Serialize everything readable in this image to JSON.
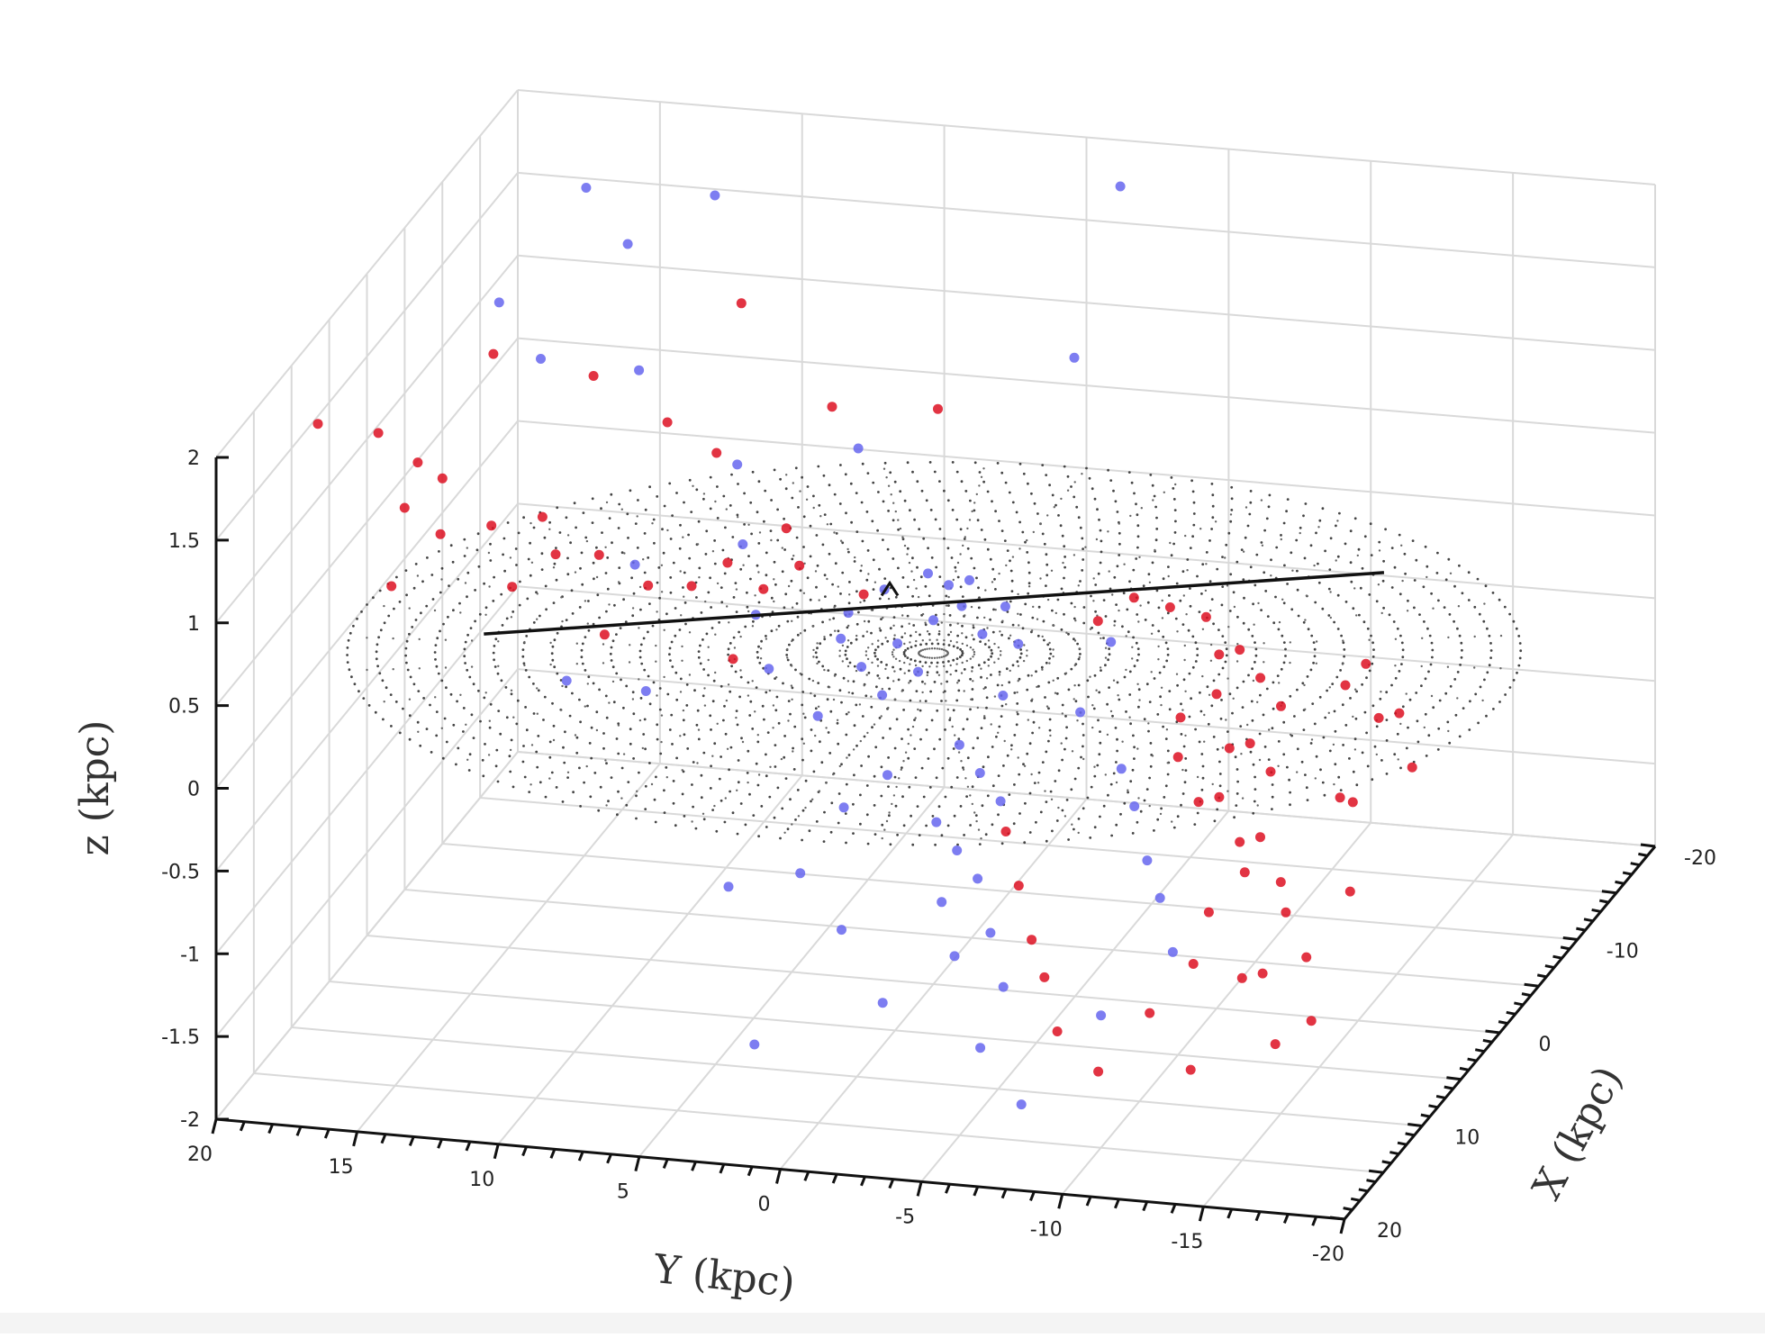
{
  "chart_data": {
    "type": "scatter",
    "projection": "3d",
    "title": "",
    "xlabel": "X (kpc)",
    "ylabel": "Y (kpc)",
    "zlabel": "z (kpc)",
    "xlim": [
      -20,
      20
    ],
    "ylim": [
      -20,
      20
    ],
    "zlim": [
      -2,
      2
    ],
    "x_ticks": [
      "-20",
      "-10",
      "0",
      "10",
      "20"
    ],
    "y_ticks": [
      "20",
      "15",
      "10",
      "5",
      "0",
      "-5",
      "-10",
      "-15",
      "-20"
    ],
    "z_ticks": [
      "2",
      "1.5",
      "1",
      "0.5",
      "0",
      "-0.5",
      "-1",
      "-1.5",
      "-2"
    ],
    "grid": true,
    "legend": "none",
    "series": [
      {
        "color": "#dd1122",
        "points": [
          [
            12.0,
            15.0,
            1.6
          ],
          [
            10.0,
            16.0,
            1.2
          ],
          [
            8.0,
            17.0,
            0.6
          ],
          [
            9.0,
            15.0,
            1.0
          ],
          [
            6.0,
            14.0,
            0.9
          ],
          [
            5.0,
            12.0,
            0.7
          ],
          [
            3.0,
            11.0,
            0.6
          ],
          [
            4.0,
            9.0,
            0.5
          ],
          [
            2.0,
            8.0,
            0.4
          ],
          [
            1.0,
            7.0,
            0.5
          ],
          [
            0.0,
            6.0,
            0.3
          ],
          [
            -1.0,
            5.0,
            0.4
          ],
          [
            3.0,
            13.0,
            0.8
          ],
          [
            7.0,
            13.0,
            0.6
          ],
          [
            6.0,
            10.0,
            0.3
          ],
          [
            4.0,
            6.0,
            0.1
          ],
          [
            -2.0,
            3.0,
            0.2
          ],
          [
            -3.0,
            6.0,
            0.5
          ],
          [
            -5.0,
            9.0,
            0.8
          ],
          [
            -6.0,
            11.0,
            0.9
          ],
          [
            -3.0,
            -5.0,
            0.1
          ],
          [
            -4.0,
            -6.0,
            0.2
          ],
          [
            -5.0,
            -7.0,
            0.1
          ],
          [
            -6.0,
            -8.0,
            0.0
          ],
          [
            -4.0,
            -9.0,
            -0.1
          ],
          [
            -3.0,
            -10.0,
            0.0
          ],
          [
            -2.0,
            -11.0,
            -0.1
          ],
          [
            -1.0,
            -12.0,
            -0.2
          ],
          [
            0.0,
            -10.0,
            -0.1
          ],
          [
            1.0,
            -9.0,
            -0.2
          ],
          [
            2.0,
            -11.0,
            -0.3
          ],
          [
            3.0,
            -12.0,
            -0.2
          ],
          [
            4.0,
            -13.0,
            -0.3
          ],
          [
            5.0,
            -10.0,
            -0.2
          ],
          [
            6.0,
            -11.0,
            -0.4
          ],
          [
            7.0,
            -12.0,
            -0.3
          ],
          [
            8.0,
            -13.0,
            -0.5
          ],
          [
            9.0,
            -14.0,
            -0.4
          ],
          [
            10.0,
            -15.0,
            -0.6
          ],
          [
            11.0,
            -14.0,
            -0.5
          ],
          [
            12.0,
            -13.0,
            -0.7
          ],
          [
            13.0,
            -16.0,
            -0.6
          ],
          [
            14.0,
            -17.0,
            -0.8
          ],
          [
            15.0,
            -15.0,
            -0.9
          ],
          [
            16.0,
            -16.0,
            -0.8
          ],
          [
            17.0,
            -18.0,
            -1.0
          ],
          [
            18.0,
            -17.0,
            -1.1
          ],
          [
            -2.0,
            -14.0,
            -0.1
          ],
          [
            -1.0,
            -15.0,
            0.1
          ],
          [
            1.0,
            -16.0,
            -0.1
          ],
          [
            2.0,
            -17.0,
            0.0
          ],
          [
            4.0,
            -18.0,
            -0.2
          ],
          [
            6.0,
            -16.0,
            -0.3
          ],
          [
            8.0,
            -17.0,
            -0.2
          ],
          [
            12.0,
            -18.0,
            -0.5
          ],
          [
            14.0,
            -13.0,
            -0.9
          ],
          [
            16.0,
            -12.0,
            -1.1
          ],
          [
            18.0,
            -14.0,
            -1.3
          ],
          [
            17.0,
            -9.0,
            -1.2
          ],
          [
            15.0,
            -8.0,
            -1.0
          ],
          [
            13.0,
            -7.0,
            -0.9
          ],
          [
            11.0,
            -6.0,
            -0.7
          ],
          [
            9.0,
            -5.0,
            -0.5
          ],
          [
            19.0,
            -11.0,
            -1.3
          ],
          [
            -8.0,
            2.0,
            1.0
          ],
          [
            -12.0,
            10.0,
            1.3
          ],
          [
            -9.0,
            6.0,
            0.9
          ],
          [
            0.0,
            12.0,
            1.5
          ],
          [
            2.0,
            15.0,
            1.7
          ],
          [
            14.0,
            18.0,
            1.9
          ],
          [
            5.0,
            16.0,
            1.1
          ],
          [
            6.0,
            18.0,
            1.4
          ]
        ]
      },
      {
        "color": "#6666ee",
        "points": [
          [
            0.0,
            -1.0,
            0.3
          ],
          [
            1.0,
            -2.0,
            0.2
          ],
          [
            -1.0,
            -1.0,
            0.4
          ],
          [
            0.0,
            0.0,
            0.2
          ],
          [
            1.0,
            1.0,
            0.1
          ],
          [
            2.0,
            0.0,
            0.0
          ],
          [
            -1.0,
            2.0,
            0.3
          ],
          [
            0.0,
            3.0,
            0.2
          ],
          [
            1.0,
            3.0,
            0.1
          ],
          [
            2.0,
            2.0,
            0.0
          ],
          [
            3.0,
            1.0,
            -0.1
          ],
          [
            -2.0,
            0.0,
            0.3
          ],
          [
            -3.0,
            1.0,
            0.3
          ],
          [
            -2.0,
            -2.0,
            0.2
          ],
          [
            0.0,
            -3.0,
            0.1
          ],
          [
            2.0,
            -3.0,
            -0.1
          ],
          [
            4.0,
            -2.0,
            -0.3
          ],
          [
            5.0,
            -3.0,
            -0.4
          ],
          [
            6.0,
            -4.0,
            -0.5
          ],
          [
            7.0,
            -2.0,
            -0.6
          ],
          [
            8.0,
            -3.0,
            -0.7
          ],
          [
            9.0,
            -4.0,
            -0.8
          ],
          [
            10.0,
            -3.0,
            -0.9
          ],
          [
            11.0,
            -5.0,
            -1.0
          ],
          [
            12.0,
            -4.0,
            -1.1
          ],
          [
            13.0,
            -6.0,
            -1.2
          ],
          [
            6.0,
            0.0,
            -0.4
          ],
          [
            8.0,
            1.0,
            -0.5
          ],
          [
            10.0,
            2.0,
            -0.8
          ],
          [
            12.0,
            0.0,
            -1.0
          ],
          [
            14.0,
            -2.0,
            -1.3
          ],
          [
            4.0,
            3.0,
            -0.2
          ],
          [
            3.0,
            5.0,
            0.0
          ],
          [
            1.0,
            6.0,
            0.2
          ],
          [
            -1.0,
            7.0,
            0.5
          ],
          [
            -4.0,
            8.0,
            0.8
          ],
          [
            -6.0,
            12.0,
            1.2
          ],
          [
            -12.0,
            14.0,
            1.6
          ],
          [
            -14.0,
            16.0,
            1.8
          ],
          [
            -16.0,
            12.0,
            1.7
          ],
          [
            -10.0,
            18.0,
            1.3
          ],
          [
            -8.0,
            16.0,
            1.1
          ],
          [
            5.0,
            -8.0,
            -0.3
          ],
          [
            7.0,
            -9.0,
            -0.4
          ],
          [
            9.0,
            -10.0,
            -0.6
          ],
          [
            11.0,
            -11.0,
            -0.7
          ],
          [
            13.0,
            -12.0,
            -0.9
          ],
          [
            15.0,
            -10.0,
            -1.2
          ],
          [
            3.0,
            -6.0,
            -0.1
          ],
          [
            -1.0,
            -6.0,
            0.1
          ],
          [
            -17.0,
            -2.0,
            1.9
          ],
          [
            -5.0,
            4.0,
            0.9
          ],
          [
            8.0,
            8.0,
            0.1
          ],
          [
            11.0,
            10.0,
            0.3
          ],
          [
            12.0,
            4.0,
            -0.8
          ],
          [
            16.0,
            2.0,
            -1.5
          ],
          [
            2.0,
            10.0,
            0.5
          ],
          [
            16.0,
            -6.0,
            -1.4
          ],
          [
            18.0,
            -8.0,
            -1.6
          ],
          [
            -11.0,
            -2.0,
            1.2
          ]
        ]
      }
    ]
  }
}
